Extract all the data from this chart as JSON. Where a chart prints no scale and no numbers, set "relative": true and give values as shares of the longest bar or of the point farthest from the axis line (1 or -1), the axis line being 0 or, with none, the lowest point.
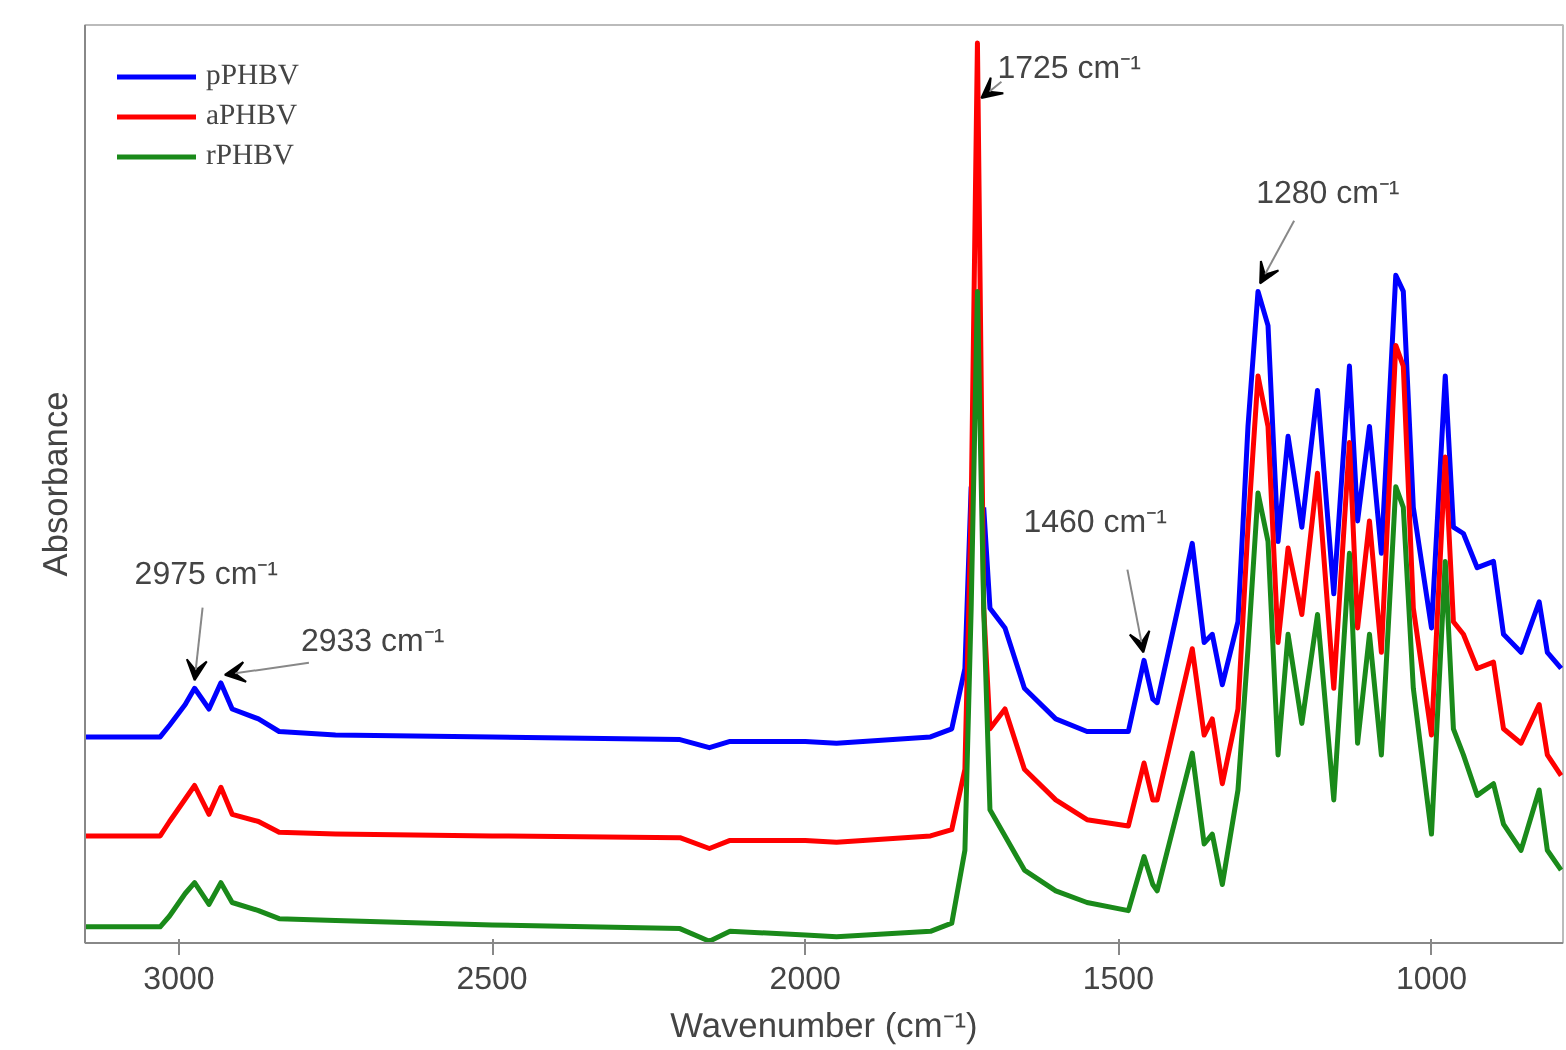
{
  "chart_data": {
    "type": "line",
    "relative": true,
    "xlabel": "Wavenumber (cm⁻¹)",
    "ylabel": "Absorbance",
    "xlim": [
      3150,
      790
    ],
    "xticks": [
      3000,
      2500,
      2000,
      1500,
      1000
    ],
    "tick_labels": "x",
    "grid": false,
    "legend": "top left",
    "line_style": "solid",
    "x": [
      3150,
      3030,
      3015,
      2990,
      2975,
      2952,
      2933,
      2915,
      2873,
      2840,
      2750,
      2500,
      2200,
      2153,
      2120,
      2000,
      1950,
      1800,
      1766,
      1745,
      1735,
      1725,
      1715,
      1705,
      1681,
      1650,
      1600,
      1550,
      1484,
      1459,
      1445,
      1438,
      1382,
      1363,
      1350,
      1334,
      1309,
      1293,
      1277,
      1261,
      1245,
      1229,
      1207,
      1182,
      1156,
      1131,
      1118,
      1099,
      1080,
      1057,
      1045,
      1029,
      1000,
      978,
      965,
      949,
      927,
      901,
      885,
      857,
      828,
      815,
      793
    ],
    "series": [
      {
        "name": "pPHBV",
        "color": "#0000ff",
        "values": [
          0.229,
          0.229,
          0.242,
          0.265,
          0.283,
          0.26,
          0.289,
          0.26,
          0.249,
          0.235,
          0.231,
          0.229,
          0.226,
          0.217,
          0.224,
          0.224,
          0.222,
          0.229,
          0.238,
          0.305,
          0.507,
          null,
          0.484,
          0.372,
          0.35,
          0.283,
          0.249,
          0.235,
          0.235,
          0.314,
          0.271,
          0.267,
          0.444,
          0.334,
          0.343,
          0.287,
          0.357,
          0.574,
          0.724,
          0.686,
          0.446,
          0.563,
          0.462,
          0.614,
          0.388,
          0.641,
          0.469,
          0.574,
          0.433,
          0.742,
          0.724,
          0.484,
          0.35,
          0.63,
          0.462,
          0.455,
          0.417,
          0.424,
          0.343,
          0.323,
          0.379,
          0.323,
          0.305
        ]
      },
      {
        "name": "aPHBV",
        "color": "#ff0000",
        "values": [
          0.119,
          0.119,
          0.135,
          0.16,
          0.175,
          0.143,
          0.173,
          0.143,
          0.135,
          0.123,
          0.121,
          0.119,
          0.117,
          0.105,
          0.114,
          0.114,
          0.112,
          0.119,
          0.126,
          0.193,
          0.484,
          1.0,
          0.372,
          0.238,
          0.26,
          0.193,
          0.159,
          0.137,
          0.13,
          0.2,
          0.159,
          0.159,
          0.327,
          0.231,
          0.249,
          0.177,
          0.26,
          0.462,
          0.63,
          0.574,
          0.334,
          0.439,
          0.365,
          0.522,
          0.283,
          0.556,
          0.35,
          0.469,
          0.323,
          0.664,
          0.641,
          0.372,
          0.231,
          0.54,
          0.357,
          0.343,
          0.305,
          0.312,
          0.238,
          0.222,
          0.265,
          0.209,
          0.186
        ]
      },
      {
        "name": "rPHBV",
        "color": "#1a8a1a",
        "values": [
          0.018,
          0.018,
          0.03,
          0.055,
          0.067,
          0.043,
          0.067,
          0.045,
          0.036,
          0.027,
          0.025,
          0.02,
          0.016,
          0.002,
          0.013,
          0.009,
          0.007,
          0.013,
          0.022,
          0.103,
          0.372,
          0.724,
          0.372,
          0.148,
          0.119,
          0.081,
          0.058,
          0.045,
          0.036,
          0.096,
          0.065,
          0.058,
          0.211,
          0.11,
          0.121,
          0.065,
          0.17,
          0.327,
          0.5,
          0.446,
          0.209,
          0.343,
          0.244,
          0.365,
          0.159,
          0.433,
          0.222,
          0.343,
          0.209,
          0.507,
          0.484,
          0.283,
          0.121,
          0.424,
          0.238,
          0.209,
          0.164,
          0.177,
          0.132,
          0.103,
          0.17,
          0.103,
          0.081
        ]
      }
    ],
    "annotations": [
      {
        "text": "2975 cm⁻¹",
        "x": 2975,
        "y": 0.283
      },
      {
        "text": "2933 cm⁻¹",
        "x": 2933,
        "y": 0.289
      },
      {
        "text": "1725 cm⁻¹",
        "x": 1725,
        "y": 0.93
      },
      {
        "text": "1460 cm⁻¹",
        "x": 1460,
        "y": 0.314
      },
      {
        "text": "1280 cm⁻¹",
        "x": 1280,
        "y": 0.724
      }
    ]
  }
}
